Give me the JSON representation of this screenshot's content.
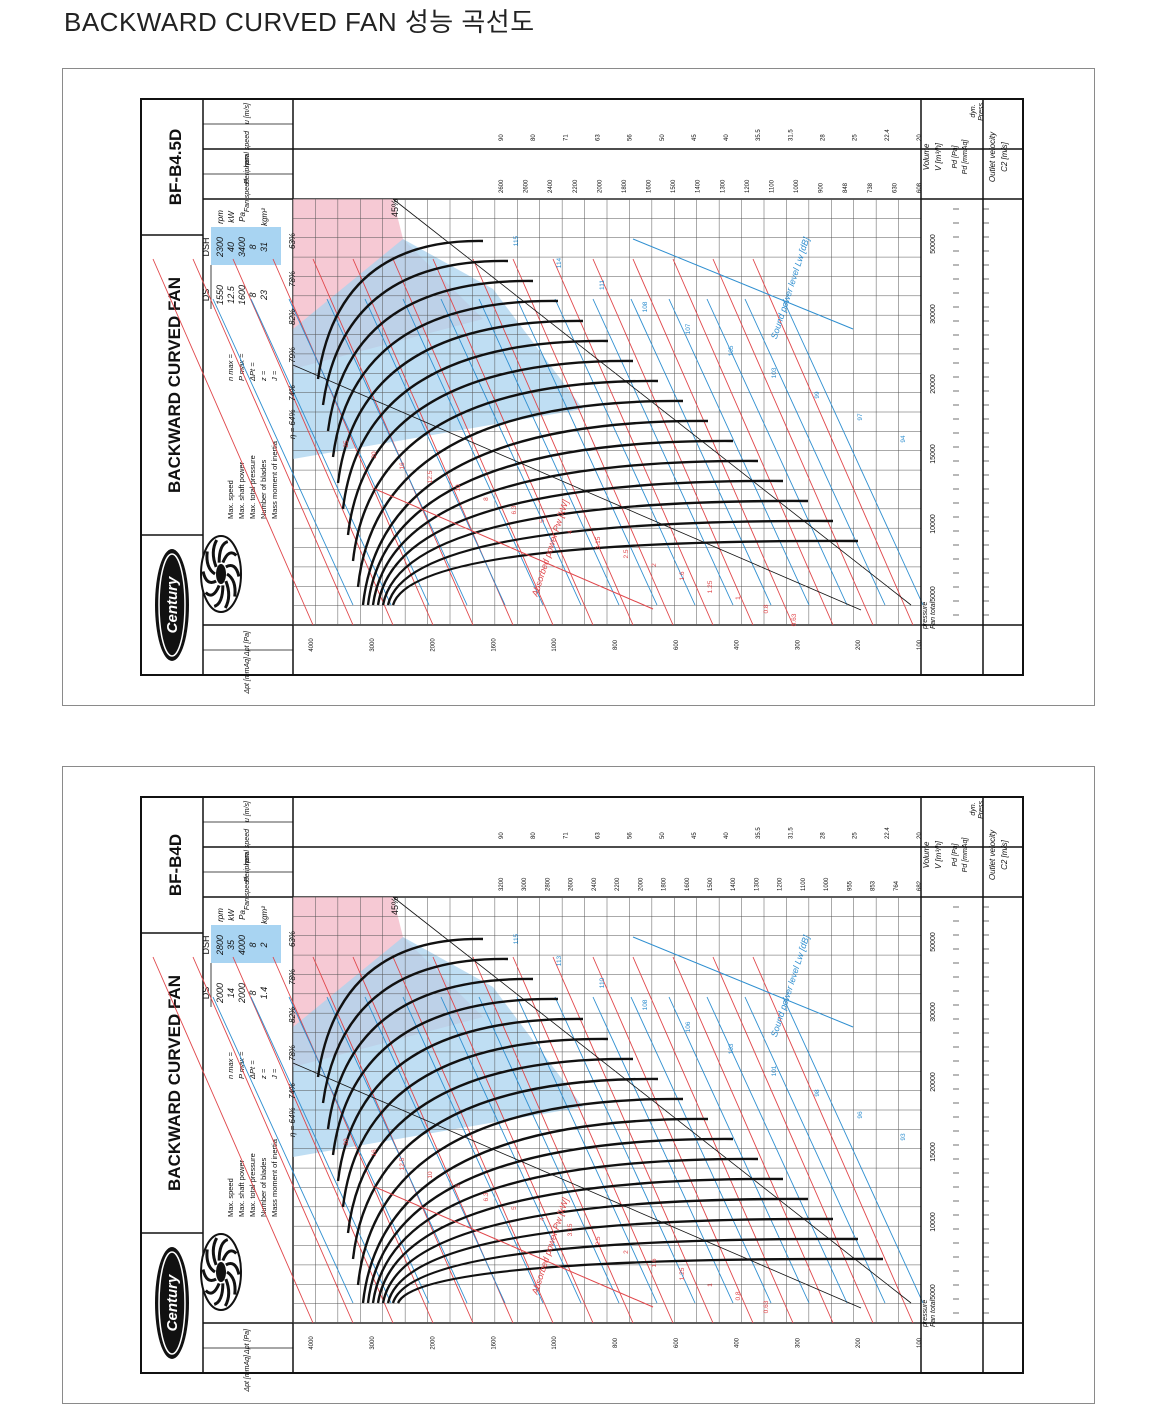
{
  "page": {
    "title": "BACKWARD CURVED FAN 성능 곡선도"
  },
  "colors": {
    "red_curve": "#e0464a",
    "blue_curve": "#2f8fd0",
    "black_curve": "#111111",
    "pink_zone": "#f5c0cc",
    "blue_zone": "#a9d3ef",
    "spec_box": "#a8d4f2"
  },
  "charts": [
    {
      "model": "BF-B4.5D",
      "logo_text": "Century",
      "series_title": "BACKWARD CURVED FAN",
      "spec_labels": [
        "Max. speed",
        "Max. shaft power",
        "Max. total pressure",
        "Number of blades",
        "Mass moment of inertia"
      ],
      "spec_symbols": [
        "n max =",
        "P max =",
        "ΔPt =",
        "z =",
        "J ="
      ],
      "spec_headers": [
        "DS",
        "DSH"
      ],
      "spec_units": [
        "rpm",
        "kW",
        "Pa",
        "",
        "kgm²"
      ],
      "spec_ds": [
        "1550",
        "12.5",
        "1600",
        "8",
        "23"
      ],
      "spec_dsh": [
        "2300",
        "40",
        "3400",
        "8",
        "31"
      ],
      "efficiency_labels": [
        "η = 64%",
        "74%",
        "79%",
        "82%",
        "78%",
        "63%"
      ],
      "eff_45": "45%",
      "axis_pressure_units": [
        "Δpt [Pa]",
        "Δpt [mmAq]"
      ],
      "axis_pressure_caption": [
        "Fan total",
        "pressure"
      ],
      "right_header": [
        "Peripheral speed",
        "u [m/s]",
        "Fan speed",
        "rpm"
      ],
      "bottom_caption_volume": [
        "Volume",
        "V [m³/h]"
      ],
      "bottom_caption_dyn": [
        "Pd [Pa]",
        "Pd [mmAq]"
      ],
      "bottom_caption_outlet": [
        "Outlet velocity",
        "C2 [m/s]"
      ],
      "bottom_caption_dynpress": [
        "dyn.",
        "Press."
      ],
      "power_label": "Absorbed power Pw [kW]",
      "sound_label": "Sound power level Lw [dB]",
      "volume_ticks": [
        "5000",
        "10000",
        "15000",
        "20000",
        "30000",
        "50000"
      ],
      "rpm_ticks": [
        "2600",
        "2600",
        "2400",
        "2200",
        "2000",
        "1800",
        "1600",
        "1500",
        "1400",
        "1300",
        "1200",
        "1100",
        "1000",
        "900",
        "848",
        "738",
        "630",
        "608"
      ],
      "speed_ticks": [
        "90",
        "80",
        "71",
        "63",
        "56",
        "50",
        "45",
        "40",
        "35.5",
        "31.5",
        "28",
        "25",
        "22.4",
        "20"
      ],
      "pressure_ticks": [
        "4000",
        "3000",
        "2000",
        "1600",
        "1000",
        "800",
        "600",
        "400",
        "300",
        "200",
        "100"
      ],
      "power_ticks": [
        "25",
        "20",
        "16",
        "12.5",
        "10",
        "8",
        "6.3",
        "5",
        "4",
        "3.15",
        "2.5",
        "2",
        "1.6",
        "1.25",
        "1",
        "0.8",
        "0.63"
      ],
      "sound_ticks": [
        "115",
        "114",
        "111",
        "108",
        "107",
        "105",
        "103",
        "99",
        "97",
        "94"
      ]
    },
    {
      "model": "BF-B4D",
      "logo_text": "Century",
      "series_title": "BACKWARD CURVED FAN",
      "spec_labels": [
        "Max. speed",
        "Max. shaft power",
        "Max. total pressure",
        "Number of blades",
        "Mass moment of inertia"
      ],
      "spec_symbols": [
        "n max =",
        "P max =",
        "ΔPt =",
        "z =",
        "J ="
      ],
      "spec_headers": [
        "DS",
        "DSH"
      ],
      "spec_units": [
        "rpm",
        "kW",
        "Pa",
        "",
        "kgm²"
      ],
      "spec_ds": [
        "2000",
        "14",
        "2000",
        "8",
        "1.4"
      ],
      "spec_dsh": [
        "2800",
        "35",
        "4000",
        "8",
        "2"
      ],
      "efficiency_labels": [
        "η = 64%",
        "74%",
        "78%",
        "82%",
        "78%",
        "63%"
      ],
      "eff_45": "45%",
      "axis_pressure_units": [
        "Δpt [Pa]",
        "Δpt [mmAq]"
      ],
      "axis_pressure_caption": [
        "Fan total",
        "pressure"
      ],
      "right_header": [
        "Peripheral speed",
        "u [m/s]",
        "Fan speed",
        "rpm"
      ],
      "bottom_caption_volume": [
        "Volume",
        "V [m³/h]"
      ],
      "bottom_caption_dyn": [
        "Pd [Pa]",
        "Pd [mmAq]"
      ],
      "bottom_caption_outlet": [
        "Outlet velocity",
        "C2 [m/s]"
      ],
      "bottom_caption_dynpress": [
        "dyn.",
        "Press."
      ],
      "power_label": "Absorbed power Pw [kW]",
      "sound_label": "Sound power level Lw [dB]",
      "volume_ticks": [
        "5000",
        "10000",
        "15000",
        "20000",
        "30000",
        "50000"
      ],
      "rpm_ticks": [
        "3200",
        "3000",
        "2800",
        "2600",
        "2400",
        "2200",
        "2000",
        "1800",
        "1600",
        "1500",
        "1400",
        "1300",
        "1200",
        "1100",
        "1000",
        "955",
        "853",
        "764",
        "682"
      ],
      "speed_ticks": [
        "90",
        "80",
        "71",
        "63",
        "56",
        "50",
        "45",
        "40",
        "35.5",
        "31.5",
        "28",
        "25",
        "22.4",
        "20"
      ],
      "pressure_ticks": [
        "4000",
        "3000",
        "2000",
        "1600",
        "1000",
        "800",
        "600",
        "400",
        "300",
        "200",
        "100"
      ],
      "power_ticks": [
        "20",
        "16",
        "12.5",
        "10",
        "8",
        "6.3",
        "5",
        "4",
        "3.15",
        "2.5",
        "2",
        "1.6",
        "1.25",
        "1",
        "0.8",
        "0.63"
      ],
      "sound_ticks": [
        "115",
        "113",
        "110",
        "108",
        "106",
        "103",
        "101",
        "98",
        "96",
        "93"
      ]
    }
  ],
  "chart_data": [
    {
      "type": "line",
      "title": "BF-B4.5D",
      "xlabel": "Volume V [m³/h]",
      "ylabel": "Fan total pressure Δpt [Pa]",
      "x_ticks": [
        5000,
        10000,
        15000,
        20000,
        30000,
        50000
      ],
      "y_ticks": [
        100,
        200,
        300,
        400,
        600,
        800,
        1000,
        1600,
        2000,
        3000,
        4000
      ],
      "rpm_curves": [
        2600,
        2400,
        2200,
        2000,
        1800,
        1600,
        1500,
        1400,
        1300,
        1200,
        1100,
        1000,
        900,
        848,
        738,
        630
      ],
      "grid": true
    },
    {
      "type": "line",
      "title": "BF-B4D",
      "xlabel": "Volume V [m³/h]",
      "ylabel": "Fan total pressure Δpt [Pa]",
      "x_ticks": [
        5000,
        10000,
        15000,
        20000,
        30000,
        50000
      ],
      "y_ticks": [
        100,
        200,
        300,
        400,
        600,
        800,
        1000,
        1600,
        2000,
        3000,
        4000
      ],
      "rpm_curves": [
        3200,
        3000,
        2800,
        2600,
        2400,
        2200,
        2000,
        1800,
        1600,
        1500,
        1400,
        1300,
        1200,
        1100,
        1000,
        955,
        853,
        764
      ],
      "grid": true
    }
  ]
}
